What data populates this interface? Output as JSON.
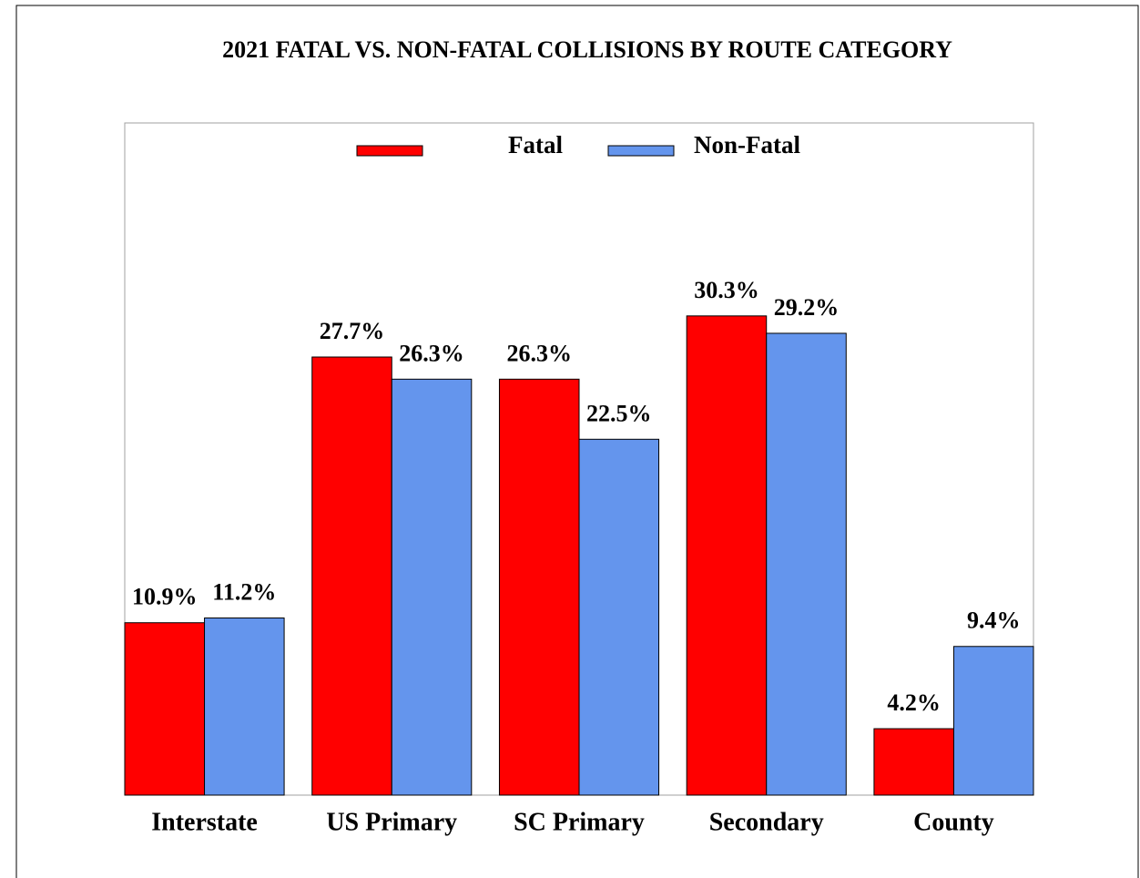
{
  "chart_data": {
    "type": "bar",
    "title": "2021 FATAL VS. NON-FATAL COLLISIONS BY ROUTE CATEGORY",
    "categories": [
      "Interstate",
      "US Primary",
      "SC Primary",
      "Secondary",
      "County"
    ],
    "series": [
      {
        "name": "Fatal",
        "color": "#ff0000",
        "values": [
          10.9,
          27.7,
          26.3,
          30.3,
          4.2
        ],
        "value_labels": [
          "10.9%",
          "27.7%",
          "26.3%",
          "30.3%",
          "4.2%"
        ]
      },
      {
        "name": "Non-Fatal",
        "color": "#6495ed",
        "values": [
          11.2,
          26.3,
          22.5,
          29.2,
          9.4
        ],
        "value_labels": [
          "11.2%",
          "26.3%",
          "22.5%",
          "29.2%",
          "9.4%"
        ]
      }
    ],
    "ylim": [
      0,
      42.5
    ],
    "legend": "top"
  }
}
